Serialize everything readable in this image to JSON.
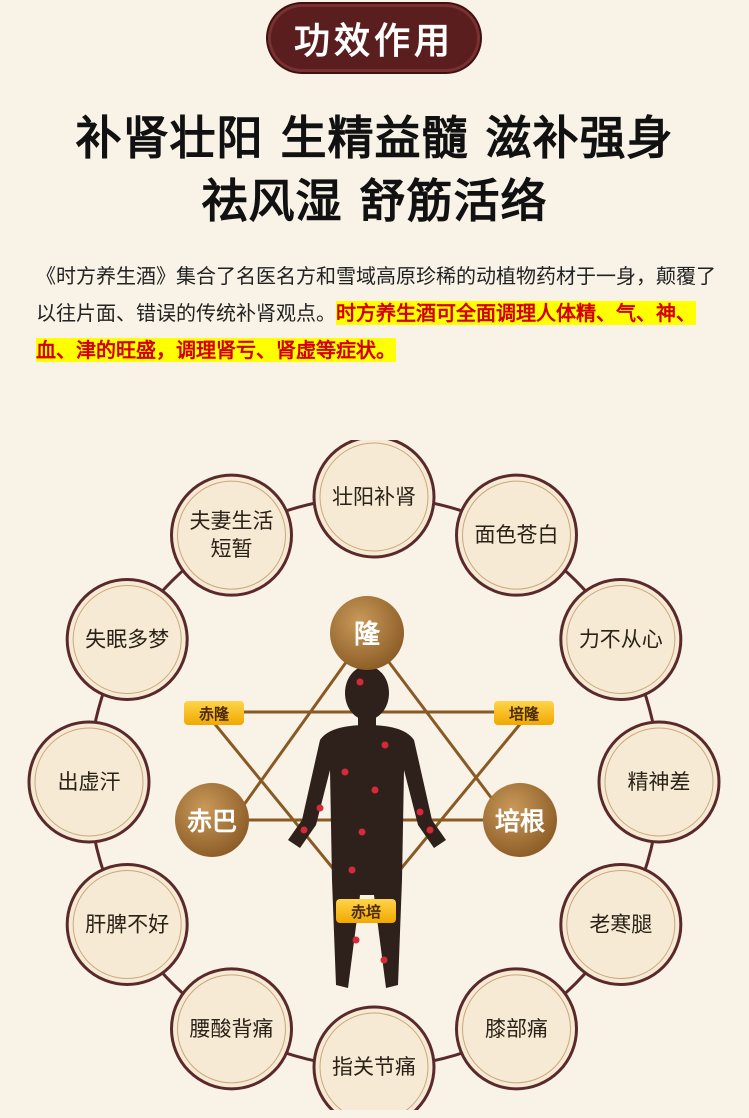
{
  "header": {
    "badge": "功效作用"
  },
  "headline": {
    "line1": "补肾壮阳 生精益髓 滋补强身",
    "line2": "祛风湿 舒筋活络"
  },
  "intro": {
    "normal": "《时方养生酒》集合了名医名方和雪域高原珍稀的动植物药材于一身，颠覆了以往片面、错误的传统补肾观点。",
    "highlight": "时方养生酒可全面调理人体精、气、神、血、津的旺盛，调理肾亏、肾虚等症状。"
  },
  "diagram": {
    "circles": [
      [
        "壮阳补肾"
      ],
      [
        "面色苍白"
      ],
      [
        "力不从心"
      ],
      [
        "精神差"
      ],
      [
        "老寒腿"
      ],
      [
        "膝部痛"
      ],
      [
        "指关节痛"
      ],
      [
        "腰酸背痛"
      ],
      [
        "肝脾不好"
      ],
      [
        "出虚汗"
      ],
      [
        "失眠多梦"
      ],
      [
        "夫妻生活",
        "短暂"
      ]
    ],
    "nodes": {
      "top": "隆",
      "left": "赤巴",
      "right": "培根"
    },
    "tags": {
      "left": "赤隆",
      "right": "培隆",
      "bottom": "赤培"
    }
  },
  "colors": {
    "badge": "#5a1e1e",
    "highlight_bg": "#ffff00",
    "highlight_text": "#d40000",
    "ring": "#5a2a2a",
    "node": "#9a6a30"
  }
}
